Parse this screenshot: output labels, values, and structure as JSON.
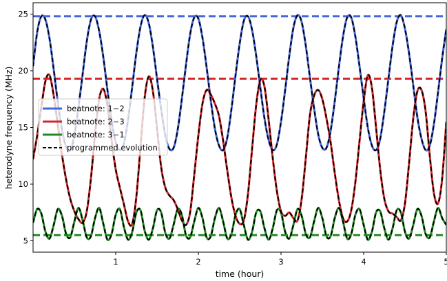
{
  "chart_data": {
    "type": "line",
    "xlabel": "time (hour)",
    "ylabel": "heterodyne frequency (MHz)",
    "xlim": [
      0,
      5
    ],
    "ylim": [
      4,
      26
    ],
    "x_ticks": [
      1,
      2,
      3,
      4,
      5
    ],
    "y_ticks": [
      5,
      10,
      15,
      20,
      25
    ],
    "grid": false,
    "legend_position": "center-left",
    "series": [
      {
        "name": "beatnote: 1−2",
        "color": "#4466dd",
        "style": "solid",
        "x": [
          0,
          0.05,
          0.1,
          0.15,
          0.2,
          0.25,
          0.3,
          0.35,
          0.4,
          0.45,
          0.5,
          0.55,
          0.6,
          0.65,
          0.7,
          0.75,
          0.8,
          0.85,
          0.9,
          0.95,
          1,
          1.05,
          1.1,
          1.15,
          1.2,
          1.25,
          1.3,
          1.35,
          1.4,
          1.45,
          1.5,
          1.55,
          1.6,
          1.65,
          1.7,
          1.75,
          1.8,
          1.85,
          1.9,
          1.95,
          2,
          2.05,
          2.1,
          2.15,
          2.2,
          2.25,
          2.3,
          2.35,
          2.4,
          2.45,
          2.5,
          2.55,
          2.6,
          2.65,
          2.7,
          2.75,
          2.8,
          2.85,
          2.9,
          2.95,
          3,
          3.05,
          3.1,
          3.15,
          3.2,
          3.25,
          3.3,
          3.35,
          3.4,
          3.45,
          3.5,
          3.55,
          3.6,
          3.65,
          3.7,
          3.75,
          3.8,
          3.85,
          3.9,
          3.95,
          4,
          4.05,
          4.1,
          4.15,
          4.2,
          4.25,
          4.3,
          4.35,
          4.4,
          4.45,
          4.5,
          4.55,
          4.6,
          4.65,
          4.7,
          4.75,
          4.8,
          4.85,
          4.9,
          4.95,
          5
        ],
        "y": [
          20.4,
          23.4,
          24.8,
          24.5,
          22.8,
          20.1,
          17.2,
          14.8,
          13.3,
          13.0,
          14.3,
          16.8,
          19.7,
          22.6,
          24.5,
          24.8,
          23.5,
          21.2,
          18.3,
          15.6,
          13.7,
          13.0,
          13.6,
          15.7,
          18.6,
          21.6,
          23.9,
          24.9,
          24.2,
          22.1,
          19.3,
          16.6,
          14.3,
          13.1,
          13.2,
          14.8,
          17.5,
          20.5,
          23.2,
          24.7,
          24.6,
          22.9,
          20.3,
          17.4,
          14.9,
          13.4,
          13.0,
          14.1,
          16.6,
          19.6,
          22.4,
          24.4,
          24.8,
          23.6,
          21.3,
          18.5,
          15.8,
          13.9,
          13.0,
          13.5,
          15.5,
          18.3,
          21.3,
          23.8,
          24.9,
          24.3,
          22.2,
          19.4,
          16.7,
          14.4,
          13.2,
          13.2,
          14.7,
          17.3,
          20.3,
          23.0,
          24.7,
          24.7,
          23.0,
          20.4,
          17.6,
          15.0,
          13.4,
          13.0,
          14.0,
          16.4,
          19.3,
          22.2,
          24.3,
          24.9,
          23.7,
          21.5,
          18.7,
          15.9,
          14.0,
          13.0,
          13.4,
          15.3,
          18.1,
          21.1,
          23.7
        ]
      },
      {
        "name": "beatnote: 2−3",
        "color": "#d62728",
        "style": "solid",
        "x": [
          0,
          0.05,
          0.1,
          0.15,
          0.2,
          0.25,
          0.3,
          0.35,
          0.4,
          0.45,
          0.5,
          0.55,
          0.6,
          0.65,
          0.7,
          0.75,
          0.8,
          0.85,
          0.9,
          0.95,
          1,
          1.05,
          1.1,
          1.15,
          1.2,
          1.25,
          1.3,
          1.35,
          1.4,
          1.45,
          1.5,
          1.55,
          1.6,
          1.65,
          1.7,
          1.75,
          1.8,
          1.85,
          1.9,
          1.95,
          2,
          2.05,
          2.1,
          2.15,
          2.2,
          2.25,
          2.3,
          2.35,
          2.4,
          2.45,
          2.5,
          2.55,
          2.6,
          2.65,
          2.7,
          2.75,
          2.8,
          2.85,
          2.9,
          2.95,
          3,
          3.05,
          3.1,
          3.15,
          3.2,
          3.25,
          3.3,
          3.35,
          3.4,
          3.45,
          3.5,
          3.55,
          3.6,
          3.65,
          3.7,
          3.75,
          3.8,
          3.85,
          3.9,
          3.95,
          4,
          4.05,
          4.1,
          4.15,
          4.2,
          4.25,
          4.3,
          4.35,
          4.4,
          4.45,
          4.5,
          4.55,
          4.6,
          4.65,
          4.7,
          4.75,
          4.8,
          4.85,
          4.9,
          4.95,
          5
        ],
        "y": [
          12.2,
          14.3,
          16.8,
          19.1,
          19.6,
          17.8,
          15.2,
          12.6,
          10.4,
          8.7,
          7.6,
          6.9,
          6.6,
          7.6,
          10.5,
          14.4,
          17.5,
          18.4,
          16.9,
          13.9,
          11.3,
          9.7,
          8.2,
          6.7,
          6.5,
          8.9,
          13.3,
          17.6,
          19.5,
          18.2,
          14.9,
          11.5,
          9.7,
          9.0,
          8.6,
          7.8,
          6.8,
          6.4,
          7.5,
          10.8,
          14.3,
          17.1,
          18.3,
          17.9,
          17.1,
          16.0,
          13.8,
          11.2,
          8.8,
          7.2,
          6.5,
          6.8,
          9.1,
          13.1,
          17.0,
          19.2,
          18.6,
          15.7,
          12.3,
          9.4,
          7.6,
          7.2,
          7.5,
          7.0,
          6.8,
          8.7,
          12.3,
          16.1,
          17.8,
          18.3,
          17.5,
          15.8,
          13.7,
          11.0,
          8.6,
          7.0,
          6.7,
          7.7,
          10.2,
          13.8,
          17.3,
          19.6,
          18.5,
          15.0,
          11.3,
          8.7,
          7.6,
          7.4,
          7.1,
          6.8,
          8.3,
          11.9,
          15.8,
          18.2,
          18.3,
          16.4,
          12.5,
          9.2,
          8.3,
          10.5,
          15.5
        ]
      },
      {
        "name": "beatnote: 3−1",
        "color": "#1f8a1f",
        "style": "solid",
        "x": [
          0,
          0.05,
          0.1,
          0.15,
          0.2,
          0.25,
          0.3,
          0.35,
          0.4,
          0.45,
          0.5,
          0.55,
          0.6,
          0.65,
          0.7,
          0.75,
          0.8,
          0.85,
          0.9,
          0.95,
          1,
          1.05,
          1.1,
          1.15,
          1.2,
          1.25,
          1.3,
          1.35,
          1.4,
          1.45,
          1.5,
          1.55,
          1.6,
          1.65,
          1.7,
          1.75,
          1.8,
          1.85,
          1.9,
          1.95,
          2,
          2.05,
          2.1,
          2.15,
          2.2,
          2.25,
          2.3,
          2.35,
          2.4,
          2.45,
          2.5,
          2.55,
          2.6,
          2.65,
          2.7,
          2.75,
          2.8,
          2.85,
          2.9,
          2.95,
          3,
          3.05,
          3.1,
          3.15,
          3.2,
          3.25,
          3.3,
          3.35,
          3.4,
          3.45,
          3.5,
          3.55,
          3.6,
          3.65,
          3.7,
          3.75,
          3.8,
          3.85,
          3.9,
          3.95,
          4,
          4.05,
          4.1,
          4.15,
          4.2,
          4.25,
          4.3,
          4.35,
          4.4,
          4.45,
          4.5,
          4.55,
          4.6,
          4.65,
          4.7,
          4.75,
          4.8,
          4.85,
          4.9,
          4.95,
          5
        ],
        "y": [
          6.6,
          7.8,
          7.4,
          5.8,
          5.2,
          6.4,
          7.8,
          7.2,
          5.6,
          5.3,
          6.7,
          7.9,
          6.8,
          5.3,
          5.4,
          7.0,
          7.9,
          6.5,
          5.1,
          5.6,
          7.3,
          7.8,
          6.2,
          5.1,
          5.8,
          7.5,
          7.7,
          5.9,
          5.1,
          6.1,
          7.7,
          7.5,
          5.7,
          5.2,
          6.4,
          7.8,
          7.3,
          5.5,
          5.3,
          6.7,
          7.9,
          7.0,
          5.3,
          5.4,
          7.0,
          7.9,
          6.7,
          5.2,
          5.6,
          7.3,
          7.8,
          6.4,
          5.1,
          5.8,
          7.5,
          7.6,
          6.1,
          5.1,
          6.1,
          7.7,
          7.5,
          5.8,
          5.2,
          6.4,
          7.8,
          7.2,
          5.6,
          5.3,
          6.7,
          7.9,
          7.0,
          5.4,
          5.4,
          7.0,
          7.9,
          6.7,
          5.2,
          5.6,
          7.3,
          7.8,
          6.4,
          5.1,
          5.8,
          7.5,
          7.6,
          6.1,
          5.1,
          6.1,
          7.7,
          7.5,
          5.8,
          5.2,
          6.4,
          7.8,
          7.2,
          5.6,
          5.3,
          6.7,
          7.9,
          7.0,
          6.4
        ]
      },
      {
        "name": "programmed evolution",
        "color": "#000000",
        "style": "dashed",
        "overlays": [
          "beatnote: 1−2",
          "beatnote: 2−3",
          "beatnote: 3−1"
        ]
      }
    ],
    "reference_lines": [
      {
        "axis": "y",
        "value": 24.8,
        "color": "#4466dd",
        "style": "dashed"
      },
      {
        "axis": "y",
        "value": 19.3,
        "color": "#d62728",
        "style": "dashed"
      },
      {
        "axis": "y",
        "value": 5.5,
        "color": "#1f8a1f",
        "style": "dashed"
      }
    ]
  }
}
